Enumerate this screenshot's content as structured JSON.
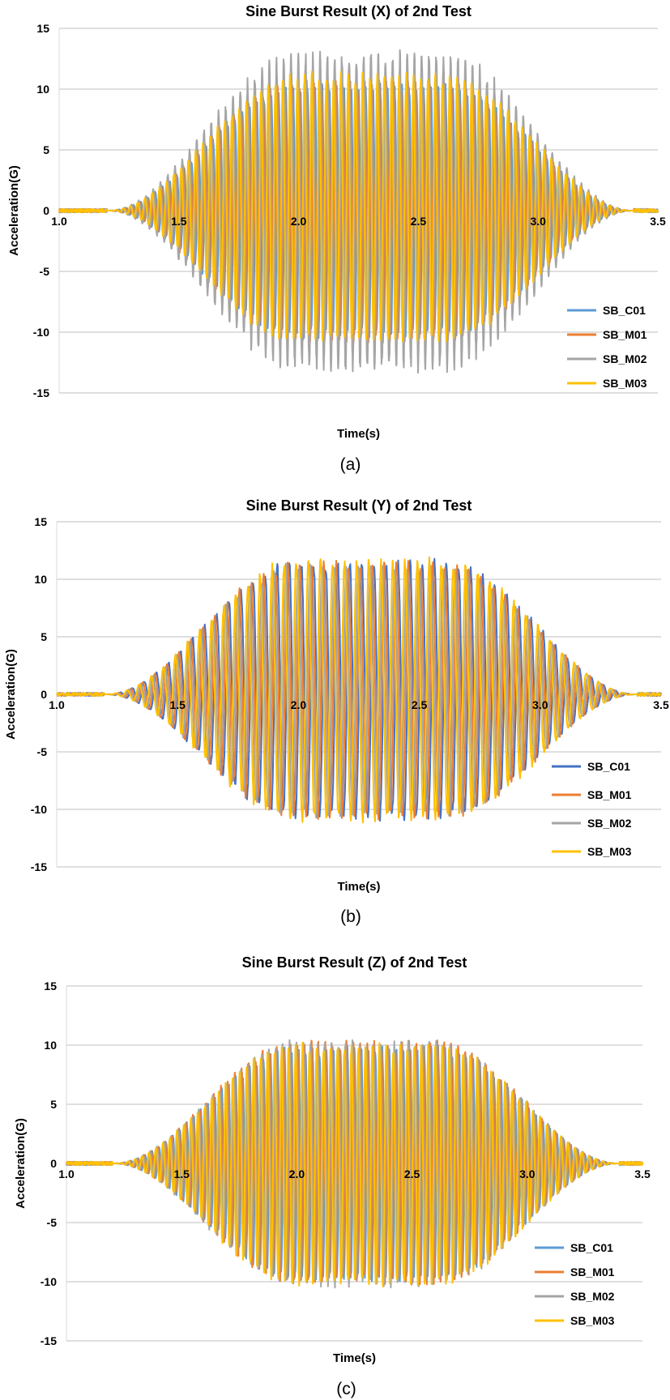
{
  "chart_data": [
    {
      "type": "line",
      "title": "Sine Burst Result (X) of 2nd Test",
      "caption": "(a)",
      "xlabel": "Time(s)",
      "ylabel": "Acceleration(G)",
      "xlim": [
        1.0,
        3.5
      ],
      "ylim": [
        -15,
        15
      ],
      "x_ticks": [
        "1.0",
        "1.5",
        "2.0",
        "2.5",
        "3.0",
        "3.5"
      ],
      "y_ticks": [
        "15",
        "10",
        "5",
        "0",
        "-5",
        "-10",
        "-15"
      ],
      "grid": "horizontal",
      "legend_position": "right",
      "burst": {
        "start": 1.2,
        "end": 3.4,
        "frequency_hz": 33,
        "plateau": [
          2.0,
          2.6
        ]
      },
      "series": [
        {
          "name": "SB_C01",
          "color": "#5b9bd5",
          "peak_pos": 10.5,
          "peak_neg": -10.5
        },
        {
          "name": "SB_M01",
          "color": "#ed7d31",
          "peak_pos": 10.8,
          "peak_neg": -11.0
        },
        {
          "name": "SB_M02",
          "color": "#a5a5a5",
          "peak_pos": 13.3,
          "peak_neg": -13.4
        },
        {
          "name": "SB_M03",
          "color": "#ffc000",
          "peak_pos": 11.5,
          "peak_neg": -11.0
        }
      ]
    },
    {
      "type": "line",
      "title": "Sine Burst Result (Y) of 2nd Test",
      "caption": "(b)",
      "xlabel": "Time(s)",
      "ylabel": "Acceleration(G)",
      "xlim": [
        1.0,
        3.5
      ],
      "ylim": [
        -15,
        15
      ],
      "x_ticks": [
        "1.0",
        "1.5",
        "2.0",
        "2.5",
        "3.0",
        "3.5"
      ],
      "y_ticks": [
        "15",
        "10",
        "5",
        "0",
        "-5",
        "-10",
        "-15"
      ],
      "grid": "horizontal",
      "legend_position": "right",
      "burst": {
        "start": 1.2,
        "end": 3.4,
        "frequency_hz": 20,
        "plateau": [
          2.0,
          2.6
        ]
      },
      "series": [
        {
          "name": "SB_C01",
          "color": "#4472c4",
          "peak_pos": 11.8,
          "peak_neg": -11.0
        },
        {
          "name": "SB_M01",
          "color": "#ed7d31",
          "peak_pos": 11.8,
          "peak_neg": -11.0
        },
        {
          "name": "SB_M02",
          "color": "#a5a5a5",
          "peak_pos": 11.5,
          "peak_neg": -10.8
        },
        {
          "name": "SB_M03",
          "color": "#ffc000",
          "peak_pos": 12.0,
          "peak_neg": -11.2
        }
      ]
    },
    {
      "type": "line",
      "title": "Sine Burst Result (Z) of 2nd Test",
      "caption": "(c)",
      "xlabel": "Time(s)",
      "ylabel": "Acceleration(G)",
      "xlim": [
        1.0,
        3.5
      ],
      "ylim": [
        -15,
        15
      ],
      "x_ticks": [
        "1.0",
        "1.5",
        "2.0",
        "2.5",
        "3.0",
        "3.5"
      ],
      "y_ticks": [
        "15",
        "10",
        "5",
        "0",
        "-5",
        "-10",
        "-15"
      ],
      "grid": "horizontal",
      "legend_position": "right",
      "burst": {
        "start": 1.2,
        "end": 3.4,
        "frequency_hz": 33,
        "plateau": [
          2.0,
          2.6
        ]
      },
      "series": [
        {
          "name": "SB_C01",
          "color": "#5b9bd5",
          "peak_pos": 10.0,
          "peak_neg": -10.0
        },
        {
          "name": "SB_M01",
          "color": "#ed7d31",
          "peak_pos": 10.5,
          "peak_neg": -10.3
        },
        {
          "name": "SB_M02",
          "color": "#a5a5a5",
          "peak_pos": 10.5,
          "peak_neg": -10.5
        },
        {
          "name": "SB_M03",
          "color": "#ffc000",
          "peak_pos": 10.3,
          "peak_neg": -10.5
        }
      ]
    }
  ]
}
